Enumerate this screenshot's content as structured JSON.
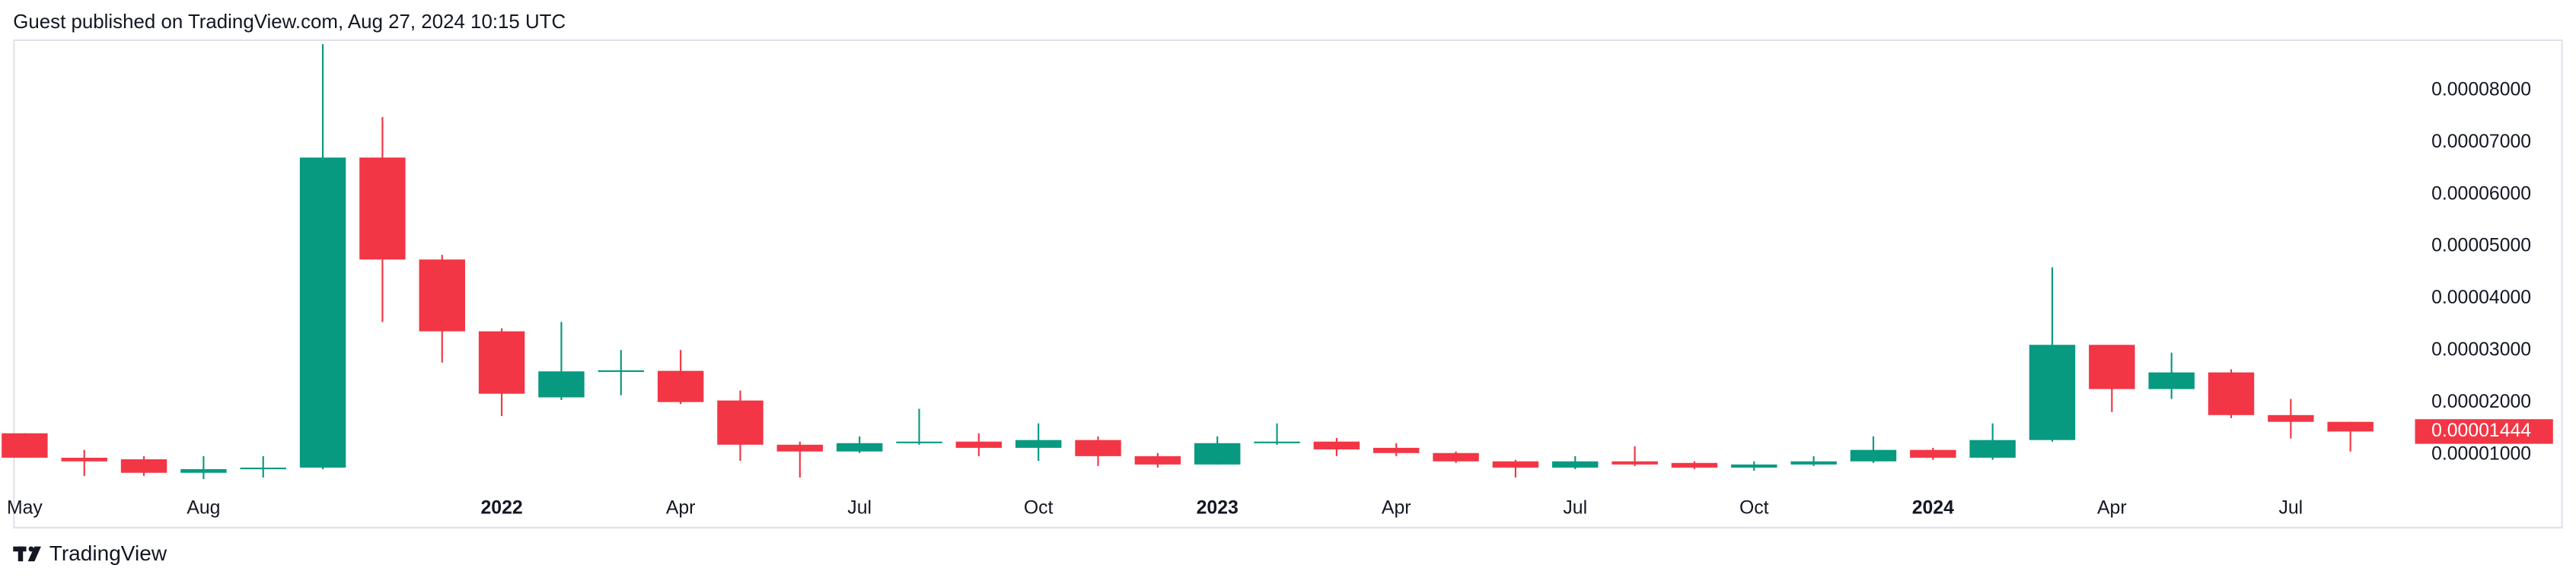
{
  "header": "Guest published on TradingView.com, Aug 27, 2024 10:15 UTC",
  "brand": "TradingView",
  "chart_data": {
    "type": "candlestick",
    "categories": [
      "May",
      null,
      null,
      "Aug",
      null,
      null,
      null,
      null,
      "2022",
      null,
      null,
      "Apr",
      null,
      null,
      "Jul",
      null,
      null,
      "Oct",
      null,
      null,
      "2023",
      null,
      null,
      "Apr",
      null,
      null,
      "Jul",
      null,
      null,
      "Oct",
      null,
      null,
      "2024",
      null,
      null,
      "Apr",
      null,
      null,
      "Jul",
      null
    ],
    "series": [
      {
        "up_color": "#089981",
        "down_color": "#f23645",
        "open": [
          1.41e-05,
          9.4e-06,
          9.1e-06,
          6.5e-06,
          7.2e-06,
          7.5e-06,
          6.71e-05,
          4.75e-05,
          3.37e-05,
          2.1e-05,
          2.6e-05,
          2.61e-05,
          2.04e-05,
          1.19e-05,
          1.06e-05,
          1.22e-05,
          1.25e-05,
          1.13e-05,
          1.28e-05,
          9.7e-06,
          8.1e-06,
          1.22e-05,
          1.25e-05,
          1.13e-05,
          1.03e-05,
          8.7e-06,
          7.5e-06,
          8.7e-06,
          8.4e-06,
          7.5e-06,
          8.1e-06,
          8.7e-06,
          1.09e-05,
          9.4e-06,
          1.28e-05,
          3.11e-05,
          2.26e-05,
          2.58e-05,
          1.76e-05,
          1.63e-05
        ],
        "high": [
          1.41e-05,
          1.09e-05,
          9.7e-06,
          9.7e-06,
          9.7e-06,
          8.89e-05,
          7.49e-05,
          4.84e-05,
          3.43e-05,
          3.55e-05,
          3.01e-05,
          3.01e-05,
          2.23e-05,
          1.25e-05,
          1.35e-05,
          1.88e-05,
          1.41e-05,
          1.6e-05,
          1.35e-05,
          1.03e-05,
          1.35e-05,
          1.6e-05,
          1.32e-05,
          1.22e-05,
          1.06e-05,
          9e-06,
          9.7e-06,
          1.16e-05,
          8.7e-06,
          8.7e-06,
          9.7e-06,
          1.35e-05,
          1.13e-05,
          1.6e-05,
          4.6e-05,
          3.11e-05,
          2.96e-05,
          2.64e-05,
          2.07e-05,
          1.63e-05
        ],
        "low": [
          9.4e-06,
          5.9e-06,
          5.9e-06,
          5.3e-06,
          5.6e-06,
          7.2e-06,
          3.55e-05,
          2.77e-05,
          1.74e-05,
          2.05e-05,
          2.14e-05,
          1.97e-05,
          8.8e-06,
          5.6e-06,
          1.03e-05,
          1.19e-05,
          9.7e-06,
          8.8e-06,
          7.8e-06,
          7.5e-06,
          8.1e-06,
          1.19e-05,
          9.7e-06,
          9.7e-06,
          8.4e-06,
          5.6e-06,
          7.2e-06,
          7.8e-06,
          7.2e-06,
          6.9e-06,
          7.8e-06,
          8.4e-06,
          9e-06,
          9e-06,
          1.25e-05,
          1.82e-05,
          2.07e-05,
          1.7e-05,
          1.31e-05,
          1.06e-05
        ],
        "close": [
          9.4e-06,
          8.7e-06,
          6.5e-06,
          7.2e-06,
          7.5e-06,
          6.71e-05,
          4.75e-05,
          3.37e-05,
          2.17e-05,
          2.6e-05,
          2.62e-05,
          2.01e-05,
          1.19e-05,
          1.06e-05,
          1.22e-05,
          1.25e-05,
          1.13e-05,
          1.28e-05,
          9.7e-06,
          8.1e-06,
          1.22e-05,
          1.25e-05,
          1.1e-05,
          1.03e-05,
          8.7e-06,
          7.5e-06,
          8.7e-06,
          8.1e-06,
          7.5e-06,
          8.1e-06,
          8.7e-06,
          1.09e-05,
          9.4e-06,
          1.28e-05,
          3.11e-05,
          2.26e-05,
          2.58e-05,
          1.76e-05,
          1.63e-05,
          1.444e-05
        ]
      }
    ],
    "ylim": [
      2.74e-06,
      8.95e-05
    ],
    "yticks": [
      {
        "value": 1e-05,
        "label": "0.00001000"
      },
      {
        "value": 2e-05,
        "label": "0.00002000"
      },
      {
        "value": 3e-05,
        "label": "0.00003000"
      },
      {
        "value": 4e-05,
        "label": "0.00004000"
      },
      {
        "value": 5e-05,
        "label": "0.00005000"
      },
      {
        "value": 6e-05,
        "label": "0.00006000"
      },
      {
        "value": 7e-05,
        "label": "0.00007000"
      },
      {
        "value": 8e-05,
        "label": "0.00008000"
      }
    ],
    "grid": false
  }
}
